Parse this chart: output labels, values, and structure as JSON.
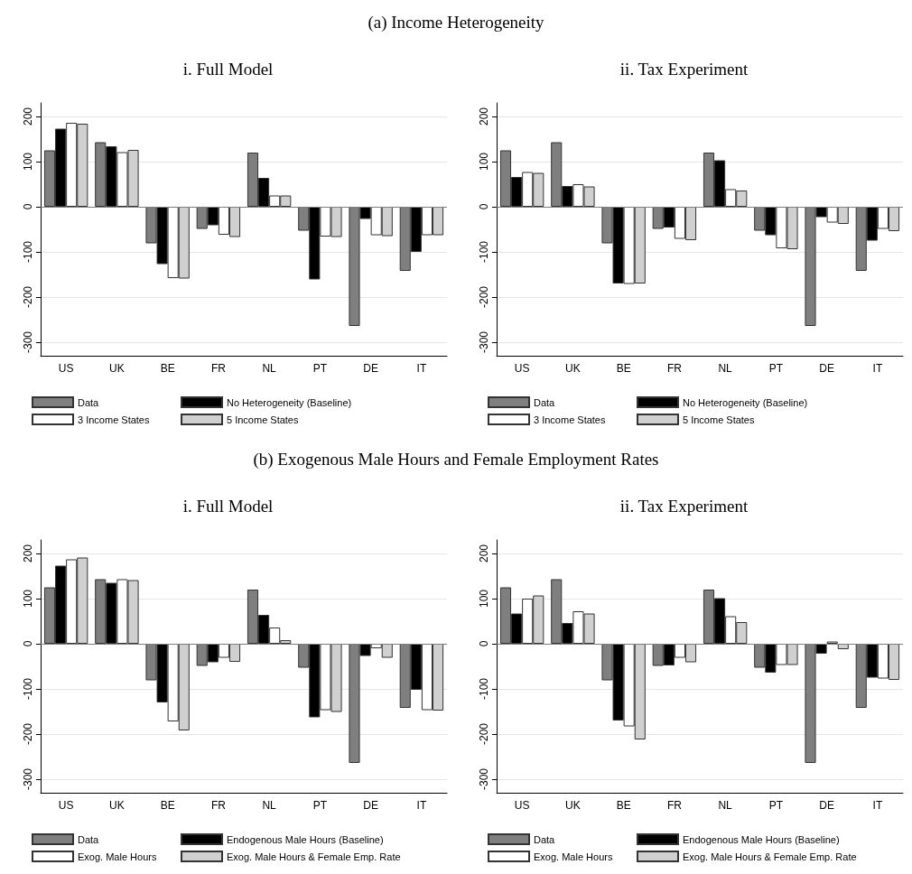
{
  "chart_data": [
    {
      "type": "bar",
      "title": "i. Full Model",
      "annotations": [
        "(a) Income Heterogeneity"
      ],
      "categories": [
        "US",
        "UK",
        "BE",
        "FR",
        "NL",
        "PT",
        "DE",
        "IT"
      ],
      "ylim": [
        -330,
        230
      ],
      "yticks": [
        -300,
        -200,
        -100,
        0,
        100,
        200
      ],
      "grid": "y",
      "legend": "bottom",
      "ref_lines": [
        {
          "axis": "y",
          "value": 0,
          "color": "#7f7f7f"
        }
      ],
      "series": [
        {
          "name": "Data",
          "color": "#7f7f7f",
          "values": [
            125,
            143,
            -81,
            -49,
            120,
            -53,
            -264,
            -142
          ]
        },
        {
          "name": "No Heterogeneity (Baseline)",
          "color": "#000000",
          "values": [
            173,
            134,
            -127,
            -41,
            64,
            -161,
            -27,
            -100
          ]
        },
        {
          "name": "3 Income States",
          "color": "#ffffff",
          "values": [
            186,
            121,
            -158,
            -62,
            25,
            -66,
            -63,
            -63
          ]
        },
        {
          "name": "5 Income States",
          "color": "#d0d0d0",
          "values": [
            184,
            126,
            -159,
            -67,
            25,
            -67,
            -65,
            -63
          ]
        }
      ]
    },
    {
      "type": "bar",
      "title": "ii. Tax Experiment",
      "categories": [
        "US",
        "UK",
        "BE",
        "FR",
        "NL",
        "PT",
        "DE",
        "IT"
      ],
      "ylim": [
        -330,
        230
      ],
      "yticks": [
        -300,
        -200,
        -100,
        0,
        100,
        200
      ],
      "grid": "y",
      "legend": "bottom",
      "ref_lines": [
        {
          "axis": "y",
          "value": 0,
          "color": "#7f7f7f"
        }
      ],
      "series": [
        {
          "name": "Data",
          "color": "#7f7f7f",
          "values": [
            125,
            143,
            -81,
            -49,
            120,
            -53,
            -264,
            -142
          ]
        },
        {
          "name": "No Heterogeneity (Baseline)",
          "color": "#000000",
          "values": [
            66,
            46,
            -170,
            -46,
            103,
            -63,
            -23,
            -75
          ]
        },
        {
          "name": "3 Income States",
          "color": "#ffffff",
          "values": [
            77,
            50,
            -171,
            -71,
            39,
            -92,
            -35,
            -49
          ]
        },
        {
          "name": "5 Income States",
          "color": "#d0d0d0",
          "values": [
            75,
            45,
            -170,
            -74,
            36,
            -94,
            -38,
            -54
          ]
        }
      ]
    },
    {
      "type": "bar",
      "title": "i. Full Model",
      "annotations": [
        "(b) Exogenous Male Hours and Female Employment Rates"
      ],
      "categories": [
        "US",
        "UK",
        "BE",
        "FR",
        "NL",
        "PT",
        "DE",
        "IT"
      ],
      "ylim": [
        -330,
        230
      ],
      "yticks": [
        -300,
        -200,
        -100,
        0,
        100,
        200
      ],
      "grid": "y",
      "legend": "bottom",
      "ref_lines": [
        {
          "axis": "y",
          "value": 0,
          "color": "#7f7f7f"
        }
      ],
      "series": [
        {
          "name": "Data",
          "color": "#7f7f7f",
          "values": [
            125,
            143,
            -81,
            -49,
            120,
            -53,
            -264,
            -142
          ]
        },
        {
          "name": "Endogenous Male Hours (Baseline)",
          "color": "#000000",
          "values": [
            173,
            135,
            -130,
            -41,
            64,
            -163,
            -27,
            -102
          ]
        },
        {
          "name": "Exog. Male Hours",
          "color": "#ffffff",
          "values": [
            187,
            143,
            -172,
            -31,
            36,
            -147,
            -10,
            -147
          ]
        },
        {
          "name": "Exog. Male Hours & Female Emp. Rate",
          "color": "#d0d0d0",
          "values": [
            191,
            141,
            -192,
            -40,
            8,
            -151,
            -31,
            -148
          ]
        }
      ]
    },
    {
      "type": "bar",
      "title": "ii. Tax Experiment",
      "categories": [
        "US",
        "UK",
        "BE",
        "FR",
        "NL",
        "PT",
        "DE",
        "IT"
      ],
      "ylim": [
        -330,
        230
      ],
      "yticks": [
        -300,
        -200,
        -100,
        0,
        100,
        200
      ],
      "grid": "y",
      "legend": "bottom",
      "ref_lines": [
        {
          "axis": "y",
          "value": 0,
          "color": "#7f7f7f"
        }
      ],
      "series": [
        {
          "name": "Data",
          "color": "#7f7f7f",
          "values": [
            125,
            143,
            -81,
            -49,
            120,
            -53,
            -264,
            -142
          ]
        },
        {
          "name": "Endogenous Male Hours (Baseline)",
          "color": "#000000",
          "values": [
            67,
            46,
            -170,
            -48,
            101,
            -64,
            -22,
            -75
          ]
        },
        {
          "name": "Exog. Male Hours",
          "color": "#ffffff",
          "values": [
            100,
            72,
            -183,
            -31,
            61,
            -47,
            5,
            -77
          ]
        },
        {
          "name": "Exog. Male Hours & Female Emp. Rate",
          "color": "#d0d0d0",
          "values": [
            107,
            67,
            -212,
            -41,
            48,
            -47,
            -12,
            -80
          ]
        }
      ]
    }
  ]
}
